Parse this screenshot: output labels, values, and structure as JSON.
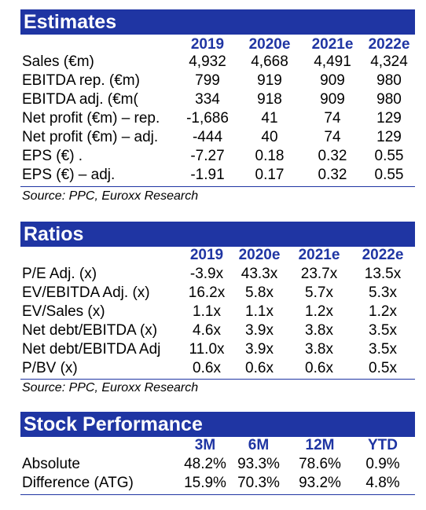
{
  "estimates": {
    "title": "Estimates",
    "columns": [
      "2019",
      "2020e",
      "2021e",
      "2022e"
    ],
    "rows": [
      {
        "label": "Sales (€m)",
        "values": [
          "4,932",
          "4,668",
          "4,491",
          "4,324"
        ]
      },
      {
        "label": "EBITDA rep. (€m)",
        "values": [
          "799",
          "919",
          "909",
          "980"
        ]
      },
      {
        "label": "EBITDA adj. (€m(",
        "values": [
          "334",
          "918",
          "909",
          "980"
        ]
      },
      {
        "label": "Net profit (€m) – rep.",
        "values": [
          "-1,686",
          "41",
          "74",
          "129"
        ]
      },
      {
        "label": "Net profit (€m) – adj.",
        "values": [
          "-444",
          "40",
          "74",
          "129"
        ]
      },
      {
        "label": "EPS (€) .",
        "values": [
          "-7.27",
          "0.18",
          "0.32",
          "0.55"
        ]
      },
      {
        "label": "EPS (€) – adj.",
        "values": [
          "-1.91",
          "0.17",
          "0.32",
          "0.55"
        ]
      }
    ],
    "source": "Source: PPC, Euroxx Research"
  },
  "ratios": {
    "title": "Ratios",
    "columns": [
      "2019",
      "2020e",
      "2021e",
      "2022e"
    ],
    "rows": [
      {
        "label": "P/E Adj. (x)",
        "values": [
          "-3.9x",
          "43.3x",
          "23.7x",
          "13.5x"
        ]
      },
      {
        "label": "EV/EBITDA Adj. (x)",
        "values": [
          "16.2x",
          "5.8x",
          "5.7x",
          "5.3x"
        ]
      },
      {
        "label": "EV/Sales (x)",
        "values": [
          "1.1x",
          "1.1x",
          "1.2x",
          "1.2x"
        ]
      },
      {
        "label": "Net debt/EBITDA (x)",
        "values": [
          "4.6x",
          "3.9x",
          "3.8x",
          "3.5x"
        ]
      },
      {
        "label": "Net debt/EBITDA Adj",
        "values": [
          "11.0x",
          "3.9x",
          "3.8x",
          "3.5x"
        ]
      },
      {
        "label": "P/BV (x)",
        "values": [
          "0.6x",
          "0.6x",
          "0.6x",
          "0.5x"
        ]
      }
    ],
    "source": "Source: PPC, Euroxx Research"
  },
  "stock_performance": {
    "title": "Stock Performance",
    "columns": [
      "3M",
      "6M",
      "12M",
      "YTD"
    ],
    "rows": [
      {
        "label": "Absolute",
        "values": [
          "48.2%",
          "93.3%",
          "78.6%",
          "0.9%"
        ]
      },
      {
        "label": "Difference (ATG)",
        "values": [
          "15.9%",
          "70.3%",
          "93.2%",
          "4.8%"
        ]
      }
    ]
  },
  "colors": {
    "header_bar": "#1f35a3",
    "header_text": "#1f35a3"
  }
}
